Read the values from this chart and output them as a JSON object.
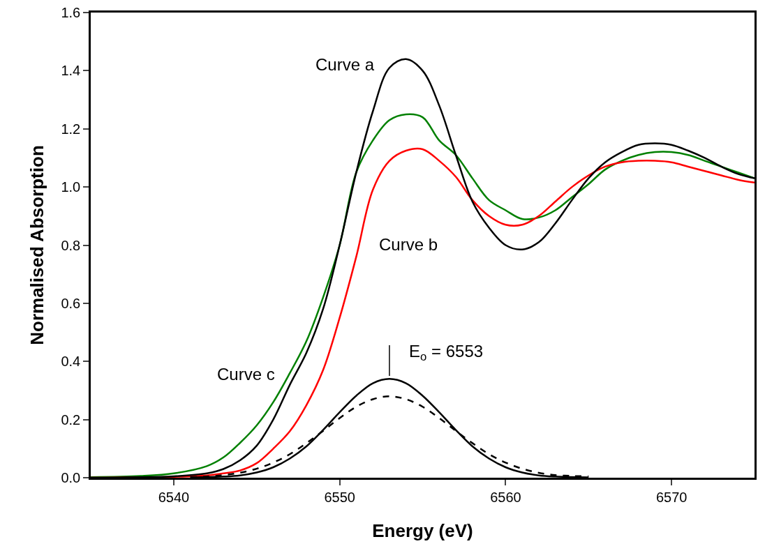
{
  "chart_data": {
    "type": "line",
    "xlabel": "Energy (eV)",
    "ylabel": "Normalised Absorption",
    "xlim": [
      6535,
      6575
    ],
    "xticks": [
      6540,
      6550,
      6560,
      6570
    ],
    "ylim": [
      0,
      1.6
    ],
    "yticks": [
      {
        "value": 0,
        "label": "0.0"
      },
      0.2,
      0.4,
      0.6,
      0.8,
      {
        "value": 1,
        "label": "1.0"
      },
      1.2,
      1.4,
      1.6
    ],
    "grid": false,
    "legend": false,
    "marker": "none",
    "line_style": "solid",
    "series": [
      {
        "name": "Curve c",
        "color": "#008000",
        "x": [
          6535,
          6538,
          6540,
          6542,
          6543,
          6544,
          6545,
          6546,
          6547,
          6548,
          6549,
          6550,
          6551,
          6552,
          6553,
          6554,
          6555,
          6556,
          6557,
          6558,
          6559,
          6560,
          6561,
          6562,
          6563,
          6564,
          6565,
          6566,
          6567,
          6568,
          6569,
          6570,
          6571,
          6572,
          6573,
          6574,
          6575
        ],
        "values": [
          0.002,
          0.006,
          0.015,
          0.04,
          0.07,
          0.12,
          0.18,
          0.26,
          0.36,
          0.47,
          0.62,
          0.8,
          1.05,
          1.16,
          1.23,
          1.25,
          1.24,
          1.16,
          1.11,
          1.03,
          0.955,
          0.92,
          0.89,
          0.895,
          0.92,
          0.965,
          1.01,
          1.06,
          1.09,
          1.11,
          1.12,
          1.12,
          1.11,
          1.09,
          1.07,
          1.05,
          1.03
        ]
      },
      {
        "name": "Curve b",
        "color": "#ff0000",
        "x": [
          6535,
          6540,
          6542,
          6543,
          6544,
          6545,
          6546,
          6547,
          6548,
          6549,
          6550,
          6551,
          6552,
          6553,
          6554,
          6555,
          6556,
          6557,
          6558,
          6559,
          6560,
          6561,
          6562,
          6563,
          6564,
          6565,
          6566,
          6567,
          6568,
          6569,
          6570,
          6571,
          6572,
          6573,
          6574,
          6575
        ],
        "values": [
          0,
          0.003,
          0.008,
          0.015,
          0.025,
          0.05,
          0.1,
          0.16,
          0.25,
          0.37,
          0.55,
          0.76,
          0.99,
          1.09,
          1.125,
          1.13,
          1.09,
          1.035,
          0.955,
          0.9,
          0.87,
          0.87,
          0.9,
          0.95,
          1.0,
          1.04,
          1.07,
          1.085,
          1.09,
          1.09,
          1.085,
          1.07,
          1.055,
          1.04,
          1.025,
          1.015
        ]
      },
      {
        "name": "Curve a",
        "color": "#000000",
        "x": [
          6535,
          6540,
          6542,
          6543,
          6544,
          6545,
          6546,
          6547,
          6548,
          6549,
          6550,
          6551,
          6552,
          6553,
          6554,
          6555,
          6556,
          6557,
          6558,
          6559,
          6560,
          6561,
          6562,
          6563,
          6564,
          6565,
          6566,
          6567,
          6568,
          6569,
          6570,
          6571,
          6572,
          6573,
          6574,
          6575
        ],
        "values": [
          0,
          0.005,
          0.015,
          0.03,
          0.06,
          0.11,
          0.2,
          0.32,
          0.43,
          0.58,
          0.8,
          1.05,
          1.26,
          1.41,
          1.44,
          1.4,
          1.28,
          1.11,
          0.95,
          0.86,
          0.8,
          0.785,
          0.81,
          0.875,
          0.955,
          1.03,
          1.085,
          1.12,
          1.145,
          1.15,
          1.145,
          1.125,
          1.1,
          1.07,
          1.045,
          1.03
        ]
      },
      {
        "color": "#000000",
        "x": [
          6541,
          6543,
          6544,
          6545,
          6546,
          6547,
          6548,
          6549,
          6550,
          6551,
          6552,
          6553,
          6554,
          6555,
          6556,
          6557,
          6558,
          6559,
          6560,
          6561,
          6562,
          6563,
          6565
        ],
        "values": [
          0.001,
          0.004,
          0.008,
          0.018,
          0.036,
          0.066,
          0.108,
          0.164,
          0.225,
          0.282,
          0.325,
          0.34,
          0.325,
          0.282,
          0.225,
          0.164,
          0.108,
          0.066,
          0.036,
          0.018,
          0.008,
          0.004,
          0.001
        ]
      },
      {
        "color": "#000000",
        "line_style": "dashed",
        "x": [
          6541,
          6542,
          6543,
          6544,
          6545,
          6546,
          6547,
          6548,
          6549,
          6550,
          6551,
          6552,
          6553,
          6554,
          6555,
          6556,
          6557,
          6558,
          6559,
          6560,
          6561,
          6562,
          6563,
          6564,
          6565
        ],
        "values": [
          0.002,
          0.004,
          0.009,
          0.017,
          0.031,
          0.052,
          0.081,
          0.119,
          0.161,
          0.205,
          0.244,
          0.27,
          0.28,
          0.27,
          0.244,
          0.205,
          0.161,
          0.119,
          0.081,
          0.052,
          0.031,
          0.017,
          0.009,
          0.006,
          0.005
        ]
      }
    ],
    "annotations": [
      {
        "text": "E$_{o}$ = 6553",
        "x": 6553,
        "y": 0.35
      }
    ]
  }
}
